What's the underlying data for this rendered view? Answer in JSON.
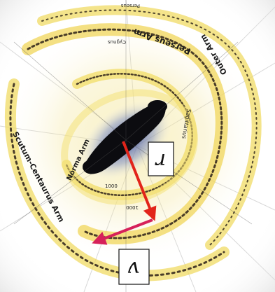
{
  "diagram": {
    "arm_labels": {
      "perseus": "Perseus Arm",
      "outer": "Outer Arm",
      "norma": "Norma Arm",
      "scutum_centaurus": "Scutum-Centaurus Arm"
    },
    "fragment_labels": {
      "top_center": "Perseus",
      "top_sub": "Cygnus",
      "upper_right": "Sagittarius",
      "inner_right": "Sagittarius",
      "near_bar": "1000",
      "bottom_center": "1000"
    },
    "vector_labels": {
      "r": "r",
      "v": "v"
    },
    "colors": {
      "r_vector": "#e2241a",
      "v_vector": "#d6215a",
      "bar": "#0c0c10",
      "arm_glow": "#f2dc63",
      "arm_dust": "#2b2018"
    }
  }
}
